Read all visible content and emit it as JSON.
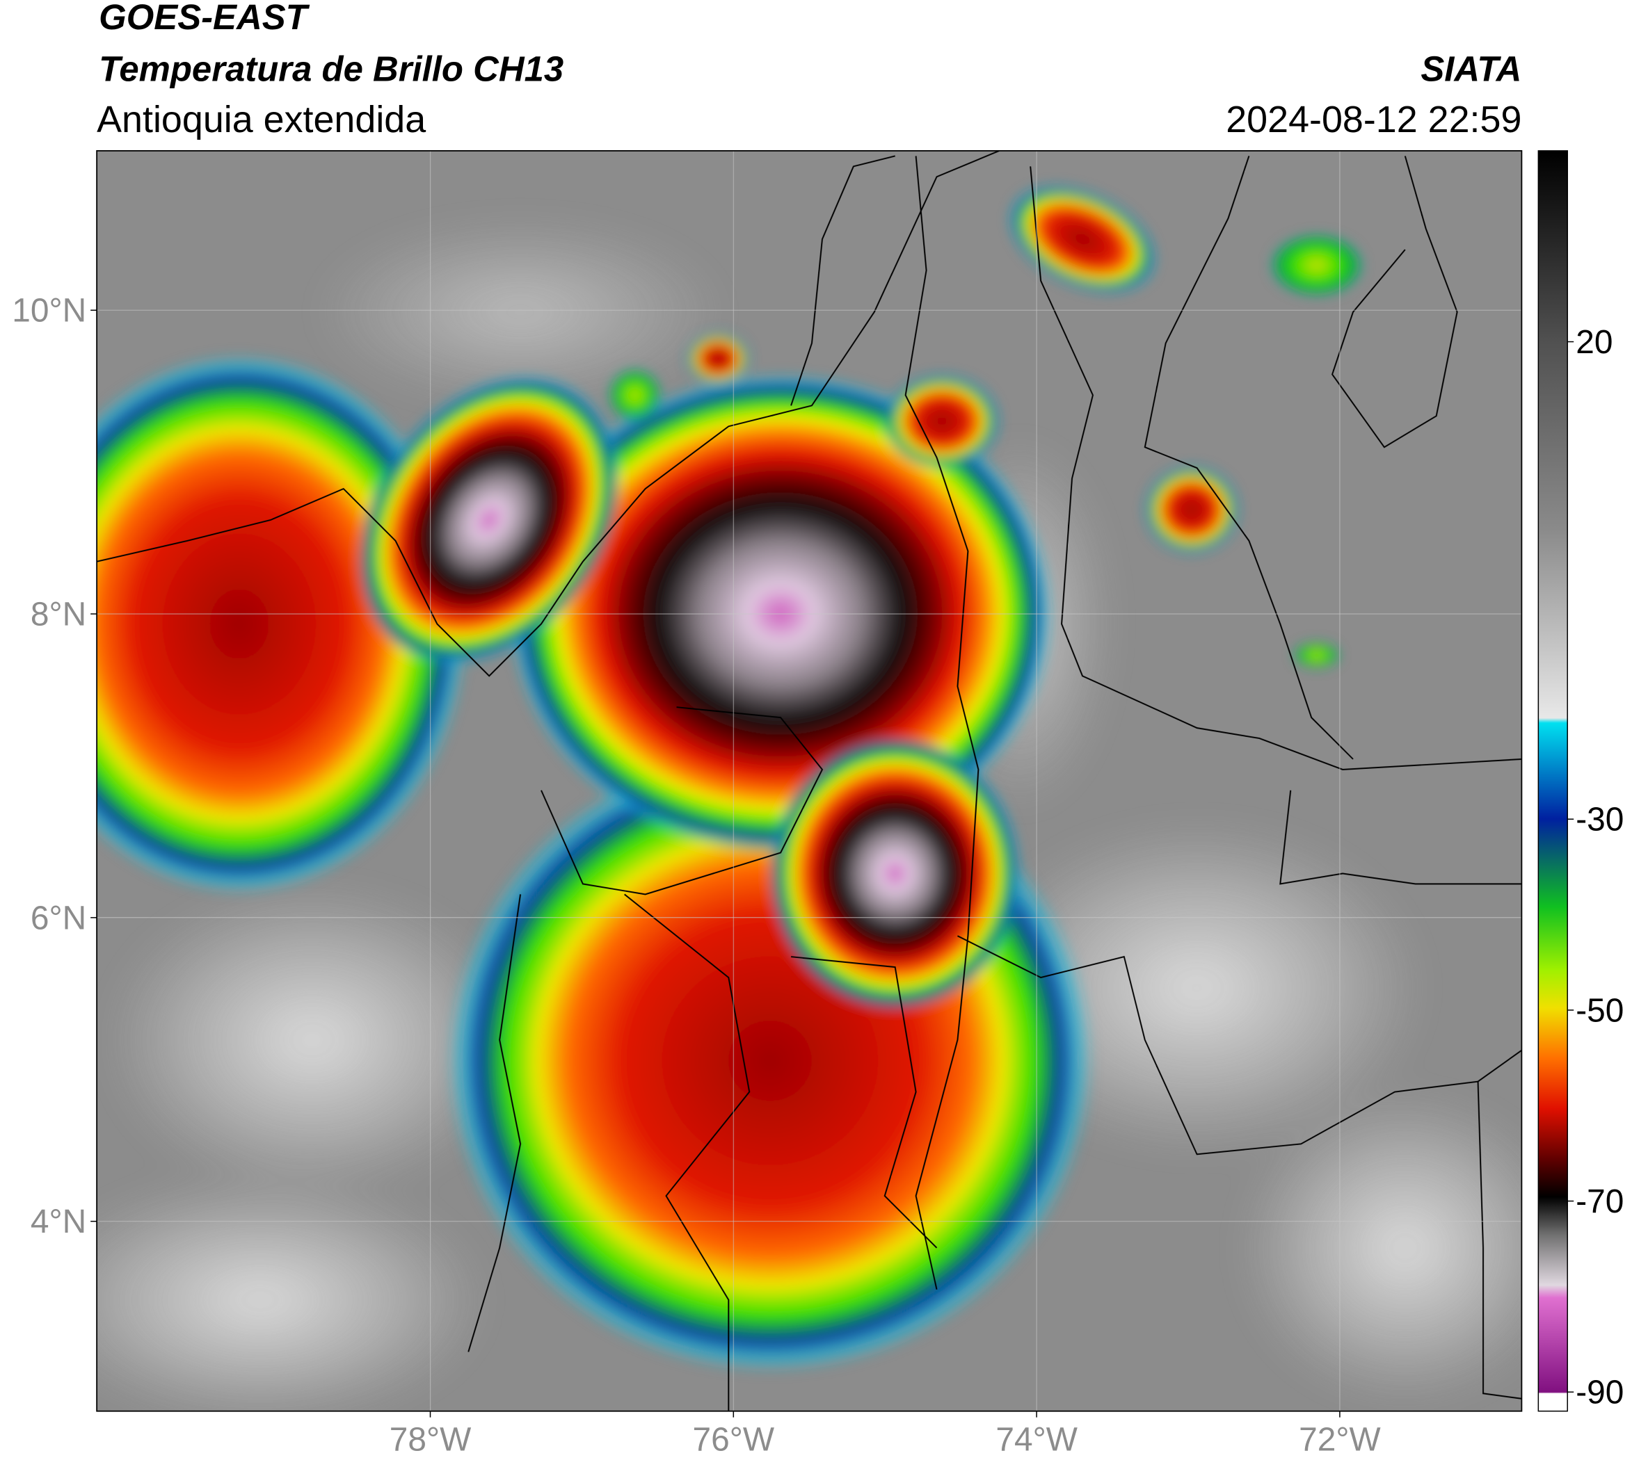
{
  "header": {
    "title": "GOES-EAST",
    "subtitle": "Temperatura de Brillo CH13",
    "region": "Antioquia extendida",
    "agency": "SIATA",
    "datetime": "2024-08-12 22:59"
  },
  "map": {
    "lon_range": [
      -80.2,
      -70.8
    ],
    "lat_range": [
      2.75,
      11.05
    ],
    "lat_ticks": [
      {
        "value": 10,
        "label": "10°N"
      },
      {
        "value": 8,
        "label": "8°N"
      },
      {
        "value": 6,
        "label": "6°N"
      },
      {
        "value": 4,
        "label": "4°N"
      }
    ],
    "lon_ticks": [
      {
        "value": -78,
        "label": "78°W"
      },
      {
        "value": -76,
        "label": "76°W"
      },
      {
        "value": -74,
        "label": "74°W"
      },
      {
        "value": -72,
        "label": "72°W"
      }
    ]
  },
  "colorbar": {
    "range": [
      -92,
      40
    ],
    "ticks": [
      20,
      -30,
      -50,
      -70,
      -90
    ]
  }
}
